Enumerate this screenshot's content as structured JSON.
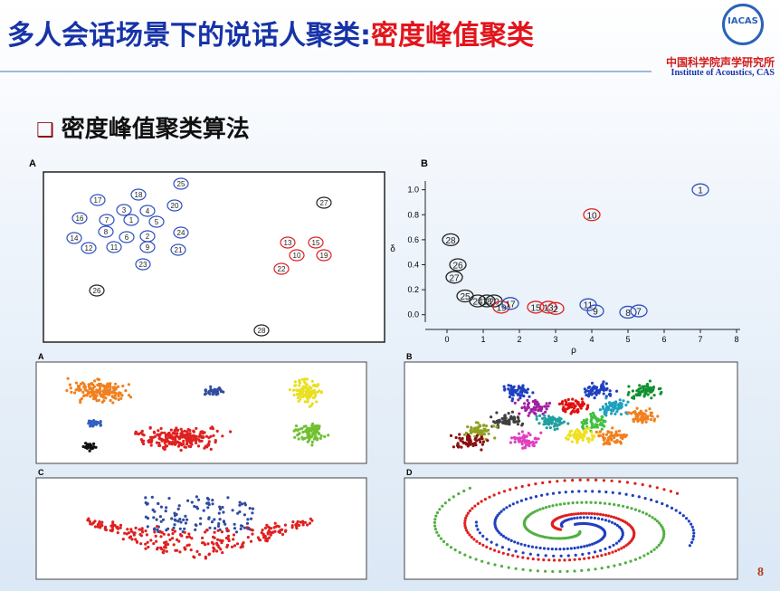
{
  "header": {
    "title": "多人会话场景下的说话人聚类:",
    "title_highlight": "密度峰值聚类",
    "logo": "IACAS",
    "institute_cn": "中国科学院声学研究所",
    "institute_en": "Institute of Acoustics, CAS"
  },
  "heading": "密度峰值聚类算法",
  "panel_a": {
    "label": "A",
    "points": [
      {
        "label": "25",
        "color": "#3050c0"
      },
      {
        "label": "18",
        "color": "#3050c0"
      },
      {
        "label": "20",
        "color": "#3050c0"
      },
      {
        "label": "17",
        "color": "#3050c0"
      },
      {
        "label": "3",
        "color": "#3050c0"
      },
      {
        "label": "4",
        "color": "#3050c0"
      },
      {
        "label": "27",
        "color": "#222222"
      },
      {
        "label": "16",
        "color": "#3050c0"
      },
      {
        "label": "7",
        "color": "#3050c0"
      },
      {
        "label": "1",
        "color": "#3050c0"
      },
      {
        "label": "5",
        "color": "#3050c0"
      },
      {
        "label": "8",
        "color": "#3050c0"
      },
      {
        "label": "6",
        "color": "#3050c0"
      },
      {
        "label": "2",
        "color": "#3050c0"
      },
      {
        "label": "24",
        "color": "#3050c0"
      },
      {
        "label": "14",
        "color": "#3050c0"
      },
      {
        "label": "12",
        "color": "#3050c0"
      },
      {
        "label": "11",
        "color": "#3050c0"
      },
      {
        "label": "9",
        "color": "#3050c0"
      },
      {
        "label": "21",
        "color": "#3050c0"
      },
      {
        "label": "13",
        "color": "#e02020"
      },
      {
        "label": "15",
        "color": "#e02020"
      },
      {
        "label": "10",
        "color": "#e02020"
      },
      {
        "label": "19",
        "color": "#e02020"
      },
      {
        "label": "23",
        "color": "#3050c0"
      },
      {
        "label": "22",
        "color": "#e02020"
      },
      {
        "label": "26",
        "color": "#222222"
      },
      {
        "label": "28",
        "color": "#222222"
      }
    ]
  },
  "decision_graph": {
    "label": "B",
    "x_label": "ρ",
    "y_label": "δ",
    "xlim": [
      -0.6,
      8.1
    ],
    "ylim": [
      -0.06,
      1.07
    ],
    "xticks": [
      0,
      1,
      2,
      3,
      4,
      5,
      6,
      7,
      8
    ],
    "yticks": [
      {
        "value": 0,
        "label": "0.0"
      },
      {
        "value": 0.2,
        "label": "0.2"
      },
      {
        "value": 0.4,
        "label": "0.4"
      },
      {
        "value": 0.6,
        "label": "0.6"
      },
      {
        "value": 0.8,
        "label": "0.8"
      },
      {
        "value": 1,
        "label": "1.0"
      }
    ],
    "points": [
      {
        "label": "1",
        "rho": 7,
        "delta": 1.0,
        "color": "#3050c0"
      },
      {
        "label": "10",
        "rho": 4,
        "delta": 0.8,
        "color": "#e02020"
      },
      {
        "label": "28",
        "rho": 0.1,
        "delta": 0.6,
        "color": "#222222"
      },
      {
        "label": "26",
        "rho": 0.3,
        "delta": 0.4,
        "color": "#222222"
      },
      {
        "label": "27",
        "rho": 0.2,
        "delta": 0.3,
        "color": "#222222"
      },
      {
        "label": "25",
        "rho": 0.5,
        "delta": 0.15,
        "color": "#222222"
      },
      {
        "label": "24",
        "rho": 0.85,
        "delta": 0.11,
        "color": "#222222"
      },
      {
        "label": "18",
        "rho": 1.1,
        "delta": 0.11,
        "color": "#222222"
      },
      {
        "label": "20",
        "rho": 1.3,
        "delta": 0.11,
        "color": "#222222"
      },
      {
        "label": "19",
        "rho": 1.5,
        "delta": 0.06,
        "color": "#e02020"
      },
      {
        "label": "17",
        "rho": 1.75,
        "delta": 0.09,
        "color": "#3050c0"
      },
      {
        "label": "15",
        "rho": 2.45,
        "delta": 0.06,
        "color": "#e02020"
      },
      {
        "label": "13",
        "rho": 2.8,
        "delta": 0.06,
        "color": "#e02020"
      },
      {
        "label": "2",
        "rho": 3.0,
        "delta": 0.05,
        "color": "#e02020"
      },
      {
        "label": "11",
        "rho": 3.9,
        "delta": 0.08,
        "color": "#3050c0"
      },
      {
        "label": "9",
        "rho": 4.1,
        "delta": 0.03,
        "color": "#3050c0"
      },
      {
        "label": "8",
        "rho": 5.0,
        "delta": 0.02,
        "color": "#3050c0"
      },
      {
        "label": "7",
        "rho": 5.3,
        "delta": 0.03,
        "color": "#3050c0"
      }
    ]
  },
  "examples": {
    "labels": [
      "A",
      "B",
      "C",
      "D"
    ]
  },
  "page_number": "8"
}
